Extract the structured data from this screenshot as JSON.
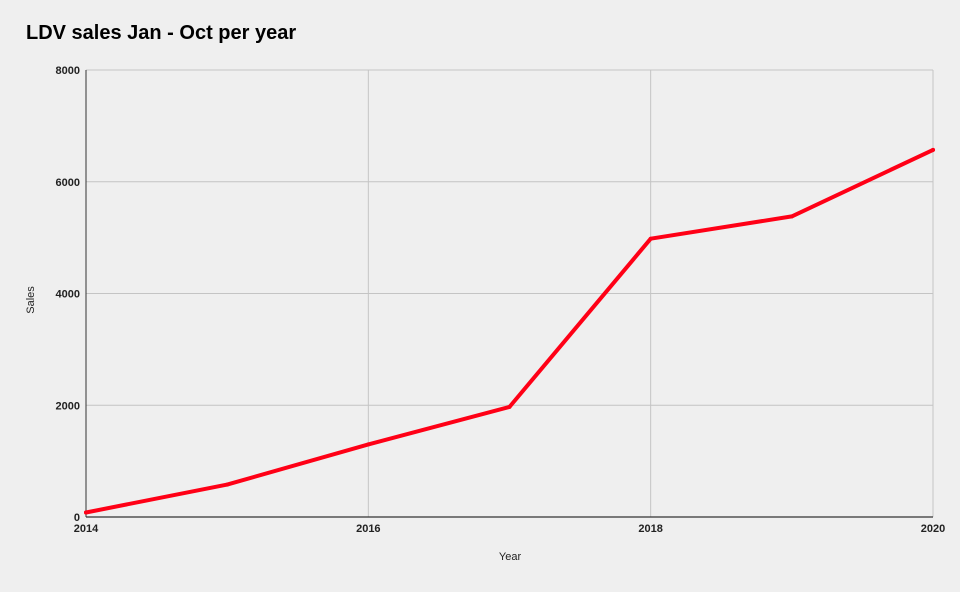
{
  "chart_data": {
    "type": "line",
    "title": "LDV sales Jan - Oct per year",
    "xlabel": "Year",
    "ylabel": "Sales",
    "xlim": [
      2014,
      2020
    ],
    "ylim": [
      0,
      8000
    ],
    "x_ticks": [
      "2014",
      "2016",
      "2018",
      "2020"
    ],
    "y_ticks": [
      "0",
      "2000",
      "4000",
      "6000",
      "8000"
    ],
    "grid": true,
    "legend": "none",
    "series": [
      {
        "color": "#ff0016",
        "x": [
          2014,
          2015,
          2016,
          2017,
          2018,
          2019,
          2020
        ],
        "values": [
          80,
          580,
          1300,
          1970,
          4980,
          5380,
          6570
        ]
      }
    ]
  }
}
